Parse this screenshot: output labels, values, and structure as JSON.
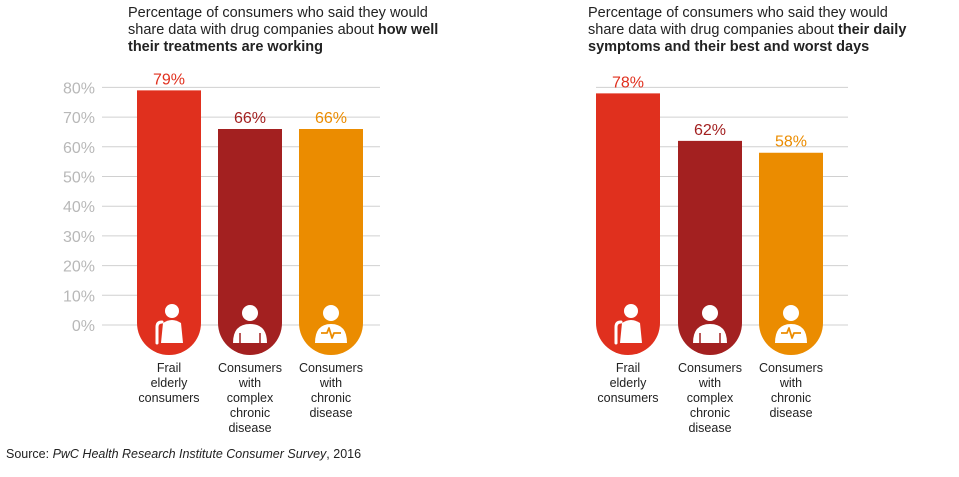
{
  "colors": {
    "frail": "#e0301e",
    "complex": "#a32020",
    "chronic": "#eb8c00",
    "grid": "#d0d0d0",
    "tick": "#b8b8b8"
  },
  "chart_data": [
    {
      "type": "bar",
      "title_plain": "Percentage of consumers who said they would share data with drug companies about ",
      "title_bold": "how well their treatments are working",
      "title_line1": "Percentage of consumers who said they would",
      "title_line2_plain": "share data with drug companies about ",
      "title_line2_bold": "how well",
      "title_line3_bold": "their treatments are working",
      "categories": [
        [
          "Frail",
          "elderly",
          "consumers"
        ],
        [
          "Consumers",
          "with",
          "complex",
          "chronic",
          "disease"
        ],
        [
          "Consumers",
          "with",
          "chronic",
          "disease"
        ]
      ],
      "values": [
        79,
        66,
        66
      ],
      "value_labels": [
        "79%",
        "66%",
        "66%"
      ],
      "icons": [
        "elderly-person-icon",
        "person-icon",
        "heartbeat-person-icon"
      ],
      "ylim": [
        0,
        80
      ],
      "yticks": [
        "0%",
        "10%",
        "20%",
        "30%",
        "40%",
        "50%",
        "60%",
        "70%",
        "80%"
      ],
      "grid": true,
      "legend": "none"
    },
    {
      "type": "bar",
      "title_line1": "Percentage of consumers who said they would",
      "title_line2_plain": "share data with drug companies about ",
      "title_line2_bold": "their daily",
      "title_line3_bold": "symptoms and their best and worst days",
      "categories": [
        [
          "Frail",
          "elderly",
          "consumers"
        ],
        [
          "Consumers",
          "with",
          "complex",
          "chronic",
          "disease"
        ],
        [
          "Consumers",
          "with",
          "chronic",
          "disease"
        ]
      ],
      "values": [
        78,
        62,
        58
      ],
      "value_labels": [
        "78%",
        "62%",
        "58%"
      ],
      "icons": [
        "elderly-person-icon",
        "person-icon",
        "heartbeat-person-icon"
      ],
      "ylim": [
        0,
        80
      ],
      "grid": true,
      "legend": "none"
    }
  ],
  "source": {
    "prefix": "Source: ",
    "italic": "PwC Health Research Institute Consumer Survey",
    "suffix": ", 2016"
  }
}
